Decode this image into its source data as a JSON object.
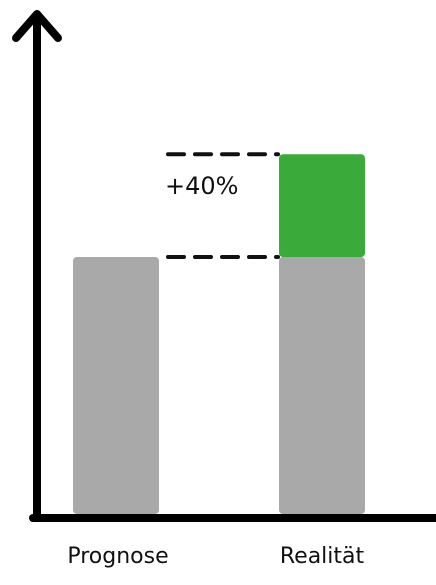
{
  "chart_data": {
    "type": "bar",
    "categories": [
      "Prognose",
      "Realität"
    ],
    "series": [
      {
        "values": [
          100,
          100
        ],
        "color": "#a9a9a9"
      },
      {
        "values": [
          0,
          40
        ],
        "color": "#3aaa3a"
      }
    ],
    "annotation": {
      "text": "+40%",
      "from": 100,
      "to": 140
    },
    "ylim": [
      0,
      200
    ],
    "xlabel": "",
    "ylabel": "",
    "grid": false,
    "axis_color": "#000000"
  }
}
